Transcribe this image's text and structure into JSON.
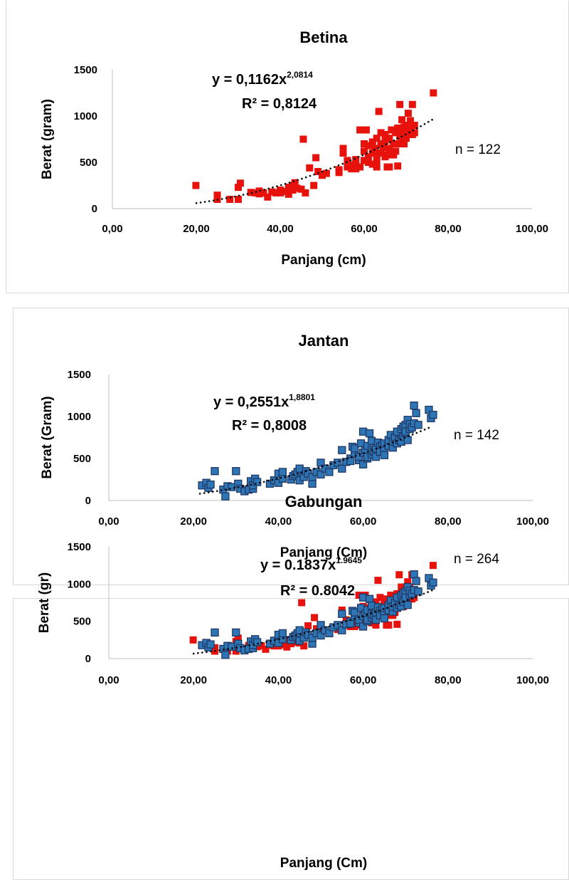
{
  "colors": {
    "female": "#e8120c",
    "male": "#2e75b6",
    "male_border": "#1f3864",
    "trend": "#000000"
  },
  "chart_data": [
    {
      "type": "scatter",
      "title": "Betina",
      "xlabel": "Panjang (cm)",
      "ylabel": "Berat (gram)",
      "xlim": [
        0,
        100
      ],
      "ylim": [
        0,
        1500
      ],
      "x_ticks": [
        "0,00",
        "20,00",
        "40,00",
        "60,00",
        "80,00",
        "100,00"
      ],
      "y_ticks": [
        "0",
        "500",
        "1000",
        "1500"
      ],
      "equation_main": "y = 0,1162x",
      "equation_exp": "2,0814",
      "r2": "R² = 0,8124",
      "n_label": "n = 122",
      "trend": {
        "a": 0.1162,
        "b": 2.0814,
        "x_range": [
          20,
          76.5
        ]
      },
      "series": [
        {
          "marker": "female",
          "points": [
            [
              19.9,
              250
            ],
            [
              25,
              145
            ],
            [
              25,
              100
            ],
            [
              28,
              100
            ],
            [
              30,
              230
            ],
            [
              30.5,
              275
            ],
            [
              30,
              100
            ],
            [
              33,
              175
            ],
            [
              34,
              170
            ],
            [
              35,
              190
            ],
            [
              35,
              160
            ],
            [
              36,
              170
            ],
            [
              37,
              125
            ],
            [
              38,
              180
            ],
            [
              39,
              170
            ],
            [
              40,
              170
            ],
            [
              40,
              200
            ],
            [
              41,
              185
            ],
            [
              42,
              155
            ],
            [
              42,
              230
            ],
            [
              43,
              200
            ],
            [
              43,
              250
            ],
            [
              43.5,
              280
            ],
            [
              44,
              220
            ],
            [
              45,
              210
            ],
            [
              45.5,
              750
            ],
            [
              46,
              170
            ],
            [
              47,
              440
            ],
            [
              48,
              250
            ],
            [
              48.5,
              550
            ],
            [
              49,
              400
            ],
            [
              50,
              360
            ],
            [
              51,
              380
            ],
            [
              54,
              390
            ],
            [
              54,
              420
            ],
            [
              55,
              600
            ],
            [
              55,
              650
            ],
            [
              56,
              450
            ],
            [
              56,
              520
            ],
            [
              57,
              470
            ],
            [
              57,
              430
            ],
            [
              58,
              480
            ],
            [
              58,
              530
            ],
            [
              58,
              430
            ],
            [
              59,
              850
            ],
            [
              59,
              450
            ],
            [
              59.5,
              850
            ],
            [
              60,
              520
            ],
            [
              60,
              620
            ],
            [
              60,
              700
            ],
            [
              60.5,
              850
            ],
            [
              61,
              500
            ],
            [
              61,
              560
            ],
            [
              61,
              680
            ],
            [
              62,
              600
            ],
            [
              62,
              720
            ],
            [
              62,
              480
            ],
            [
              62.5,
              650
            ],
            [
              63,
              450
            ],
            [
              63,
              520
            ],
            [
              63,
              580
            ],
            [
              63,
              760
            ],
            [
              63.5,
              1050
            ],
            [
              64,
              600
            ],
            [
              64,
              700
            ],
            [
              64,
              820
            ],
            [
              64.5,
              660
            ],
            [
              65,
              560
            ],
            [
              65,
              730
            ],
            [
              65,
              800
            ],
            [
              65.5,
              450
            ],
            [
              65.5,
              580
            ],
            [
              66,
              650
            ],
            [
              66,
              760
            ],
            [
              66,
              450
            ],
            [
              66.5,
              850
            ],
            [
              67,
              580
            ],
            [
              67,
              700
            ],
            [
              67.5,
              620
            ],
            [
              67.5,
              820
            ],
            [
              68,
              700
            ],
            [
              68,
              870
            ],
            [
              68,
              460
            ],
            [
              68.5,
              1125
            ],
            [
              68.5,
              780
            ],
            [
              69,
              740
            ],
            [
              69,
              830
            ],
            [
              69,
              960
            ],
            [
              69.5,
              700
            ],
            [
              69.5,
              880
            ],
            [
              70,
              800
            ],
            [
              70,
              900
            ],
            [
              70,
              760
            ],
            [
              70.5,
              1030
            ],
            [
              70.5,
              850
            ],
            [
              71,
              860
            ],
            [
              71,
              950
            ],
            [
              71,
              930
            ],
            [
              71.5,
              1125
            ],
            [
              71.5,
              800
            ],
            [
              72,
              900
            ],
            [
              72,
              820
            ],
            [
              76.5,
              1250
            ]
          ]
        }
      ]
    },
    {
      "type": "scatter",
      "title": "Jantan",
      "xlabel": "Panjang (Cm)",
      "ylabel": "Berat (Gram)",
      "xlim": [
        0,
        100
      ],
      "ylim": [
        0,
        1500
      ],
      "x_ticks": [
        "0,00",
        "20,00",
        "40,00",
        "60,00",
        "80,00",
        "100,00"
      ],
      "y_ticks": [
        "0",
        "500",
        "1000",
        "1500"
      ],
      "equation_main": "y = 0,2551x",
      "equation_exp": "1,8801",
      "r2": "R² = 0,8008",
      "n_label": "n = 142",
      "trend": {
        "a": 0.2551,
        "b": 1.8801,
        "x_range": [
          21.5,
          76
        ]
      },
      "series": [
        {
          "marker": "male",
          "points": [
            [
              22,
              180
            ],
            [
              23,
              210
            ],
            [
              23.5,
              150
            ],
            [
              24,
              190
            ],
            [
              25,
              350
            ],
            [
              27,
              130
            ],
            [
              27.5,
              50
            ],
            [
              28,
              170
            ],
            [
              29,
              160
            ],
            [
              30,
              350
            ],
            [
              30.5,
              200
            ],
            [
              31,
              140
            ],
            [
              32,
              110
            ],
            [
              33,
              130
            ],
            [
              33.5,
              230
            ],
            [
              34,
              140
            ],
            [
              34,
              180
            ],
            [
              34.5,
              260
            ],
            [
              35,
              220
            ],
            [
              38,
              200
            ],
            [
              39,
              240
            ],
            [
              40,
              320
            ],
            [
              40,
              210
            ],
            [
              41,
              260
            ],
            [
              41,
              340
            ],
            [
              43,
              250
            ],
            [
              43.5,
              290
            ],
            [
              44,
              310
            ],
            [
              44.5,
              340
            ],
            [
              45,
              240
            ],
            [
              45,
              380
            ],
            [
              46,
              280
            ],
            [
              46.5,
              350
            ],
            [
              47,
              320
            ],
            [
              48,
              200
            ],
            [
              48,
              280
            ],
            [
              49,
              340
            ],
            [
              50,
              310
            ],
            [
              50,
              450
            ],
            [
              51,
              380
            ],
            [
              52,
              340
            ],
            [
              53,
              420
            ],
            [
              54,
              450
            ],
            [
              55,
              380
            ],
            [
              55,
              600
            ],
            [
              56,
              460
            ],
            [
              57,
              500
            ],
            [
              57,
              470
            ],
            [
              57.5,
              640
            ],
            [
              58,
              560
            ],
            [
              58,
              620
            ],
            [
              59,
              480
            ],
            [
              59,
              520
            ],
            [
              59.5,
              680
            ],
            [
              60,
              430
            ],
            [
              60,
              570
            ],
            [
              60,
              820
            ],
            [
              60.5,
              600
            ],
            [
              61,
              500
            ],
            [
              61,
              650
            ],
            [
              61,
              520
            ],
            [
              61.5,
              800
            ],
            [
              62,
              550
            ],
            [
              62,
              600
            ],
            [
              62,
              710
            ],
            [
              62.5,
              580
            ],
            [
              63,
              620
            ],
            [
              63,
              520
            ],
            [
              63.5,
              690
            ],
            [
              64,
              640
            ],
            [
              64,
              580
            ],
            [
              64.5,
              660
            ],
            [
              65,
              600
            ],
            [
              65,
              680
            ],
            [
              65,
              540
            ],
            [
              66,
              650
            ],
            [
              66,
              720
            ],
            [
              66.5,
              780
            ],
            [
              67,
              630
            ],
            [
              67,
              700
            ],
            [
              67.5,
              750
            ],
            [
              68,
              680
            ],
            [
              68,
              820
            ],
            [
              68.5,
              720
            ],
            [
              69,
              700
            ],
            [
              69,
              850
            ],
            [
              69.5,
              760
            ],
            [
              69.5,
              880
            ],
            [
              70,
              800
            ],
            [
              70,
              900
            ],
            [
              70,
              820
            ],
            [
              70.5,
              720
            ],
            [
              70.5,
              960
            ],
            [
              71,
              850
            ],
            [
              71,
              910
            ],
            [
              71.5,
              870
            ],
            [
              72,
              920
            ],
            [
              72,
              1130
            ],
            [
              72.5,
              1040
            ],
            [
              73,
              900
            ],
            [
              75.5,
              1080
            ],
            [
              76,
              980
            ],
            [
              76.5,
              1020
            ]
          ]
        }
      ]
    },
    {
      "type": "scatter",
      "title": "Gabungan",
      "xlabel": "Panjang (Cm)",
      "ylabel": "Berat (gr)",
      "xlim": [
        0,
        100
      ],
      "ylim": [
        0,
        1500
      ],
      "x_ticks": [
        "0,00",
        "20,00",
        "40,00",
        "60,00",
        "80,00",
        "100,00"
      ],
      "y_ticks": [
        "0",
        "500",
        "1000",
        "1500"
      ],
      "equation_main": "y = 0.1837x",
      "equation_exp": "1.9645",
      "r2": "R² = 0.8042",
      "n_label": "n = 264",
      "trend": {
        "a": 0.1837,
        "b": 1.9645,
        "x_range": [
          20,
          76.5
        ]
      },
      "series": [
        {
          "marker": "female",
          "ref": 0
        },
        {
          "marker": "male",
          "ref": 1
        }
      ]
    }
  ]
}
